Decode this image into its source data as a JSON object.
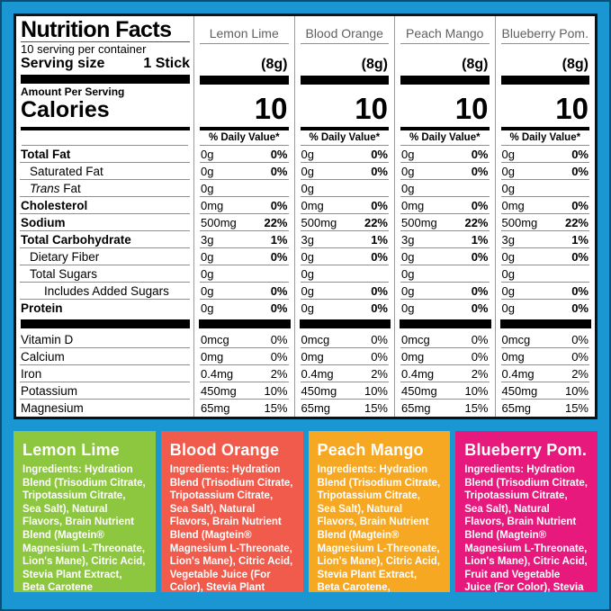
{
  "window": {
    "background": "#1a96d2",
    "frame": "#0d4e74"
  },
  "label_panel": {
    "title": "Nutrition Facts",
    "servings_per_container": "10 serving per container",
    "serving_size_label": "Serving size",
    "serving_size_value": "1 Stick",
    "amount_per_serving": "Amount Per Serving",
    "calories_label": "Calories",
    "daily_value_header": "% Daily Value*"
  },
  "columns": [
    {
      "name": "Lemon Lime",
      "serving_weight": "(8g)",
      "calories": "10"
    },
    {
      "name": "Blood Orange",
      "serving_weight": "(8g)",
      "calories": "10"
    },
    {
      "name": "Peach Mango",
      "serving_weight": "(8g)",
      "calories": "10"
    },
    {
      "name": "Blueberry Pom.",
      "serving_weight": "(8g)",
      "calories": "10"
    }
  ],
  "table": {
    "main_rows": [
      {
        "label": "Total Fat",
        "bold": true,
        "indent": 0,
        "amount": "0g",
        "dv": "0%",
        "dv_bold": true
      },
      {
        "label": "Saturated Fat",
        "bold": false,
        "indent": 1,
        "amount": "0g",
        "dv": "0%",
        "dv_bold": true
      },
      {
        "label": "Trans Fat",
        "bold": false,
        "indent": 1,
        "italic_prefix": "Trans",
        "amount": "0g",
        "dv": "",
        "dv_bold": false
      },
      {
        "label": "Cholesterol",
        "bold": true,
        "indent": 0,
        "amount": "0mg",
        "dv": "0%",
        "dv_bold": true
      },
      {
        "label": "Sodium",
        "bold": true,
        "indent": 0,
        "amount": "500mg",
        "dv": "22%",
        "dv_bold": true
      },
      {
        "label": "Total Carbohydrate",
        "bold": true,
        "indent": 0,
        "amount": "3g",
        "dv": "1%",
        "dv_bold": true
      },
      {
        "label": "Dietary Fiber",
        "bold": false,
        "indent": 1,
        "amount": "0g",
        "dv": "0%",
        "dv_bold": true
      },
      {
        "label": "Total Sugars",
        "bold": false,
        "indent": 1,
        "amount": "0g",
        "dv": "",
        "dv_bold": false
      },
      {
        "label": "Includes Added Sugars",
        "bold": false,
        "indent": 2,
        "amount": "0g",
        "dv": "0%",
        "dv_bold": true
      },
      {
        "label": "Protein",
        "bold": true,
        "indent": 0,
        "amount": "0g",
        "dv": "0%",
        "dv_bold": true,
        "rule": false
      }
    ],
    "vitamin_rows": [
      {
        "label": "Vitamin D",
        "amount": "0mcg",
        "dv": "0%"
      },
      {
        "label": "Calcium",
        "amount": "0mg",
        "dv": "0%"
      },
      {
        "label": "Iron",
        "amount": "0.4mg",
        "dv": "2%"
      },
      {
        "label": "Potassium",
        "amount": "450mg",
        "dv": "10%"
      },
      {
        "label": "Magnesium",
        "amount": "65mg",
        "dv": "15%",
        "rule": false
      }
    ]
  },
  "panels": [
    {
      "title": "Lemon Lime",
      "color": "#8dc63f",
      "ingredients_label": "Ingredients:",
      "ingredients": "Hydration Blend (Trisodium Citrate, Tripotassium Citrate, Sea Salt), Natural Flavors, Brain Nutrient Blend (Magtein® Magnesium L-Threonate, Lion's Mane), Citric Acid, Stevia Plant Extract, Beta Carotene"
    },
    {
      "title": "Blood Orange",
      "color": "#f15b4c",
      "ingredients_label": "Ingredients:",
      "ingredients": "Hydration Blend (Trisodium Citrate, Tripotassium Citrate, Sea Salt), Natural Flavors, Brain Nutrient Blend (Magtein® Magnesium L-Threonate, Lion's Mane), Citric Acid, Vegetable Juice (For Color), Stevia Plant Extract, Beta Carotene"
    },
    {
      "title": "Peach Mango",
      "color": "#f7a823",
      "ingredients_label": "Ingredients:",
      "ingredients": "Hydration Blend (Trisodium Citrate, Tripotassium Citrate, Sea Salt), Natural Flavors, Brain Nutrient Blend (Magtein® Magnesium L-Threonate, Lion's Mane), Citric Acid, Stevia Plant Extract, Beta Carotene, Vegetable Juice (For Color)"
    },
    {
      "title": "Blueberry Pom.",
      "color": "#e8197d",
      "ingredients_label": "Ingredients:",
      "ingredients": "Hydration Blend (Trisodium Citrate, Tripotassium Citrate, Sea Salt), Natural Flavors, Brain Nutrient Blend (Magtein® Magnesium L-Threonate, Lion's Mane), Citric Acid, Fruit and Vegetable Juice (For Color), Stevia Plant Extract"
    }
  ]
}
